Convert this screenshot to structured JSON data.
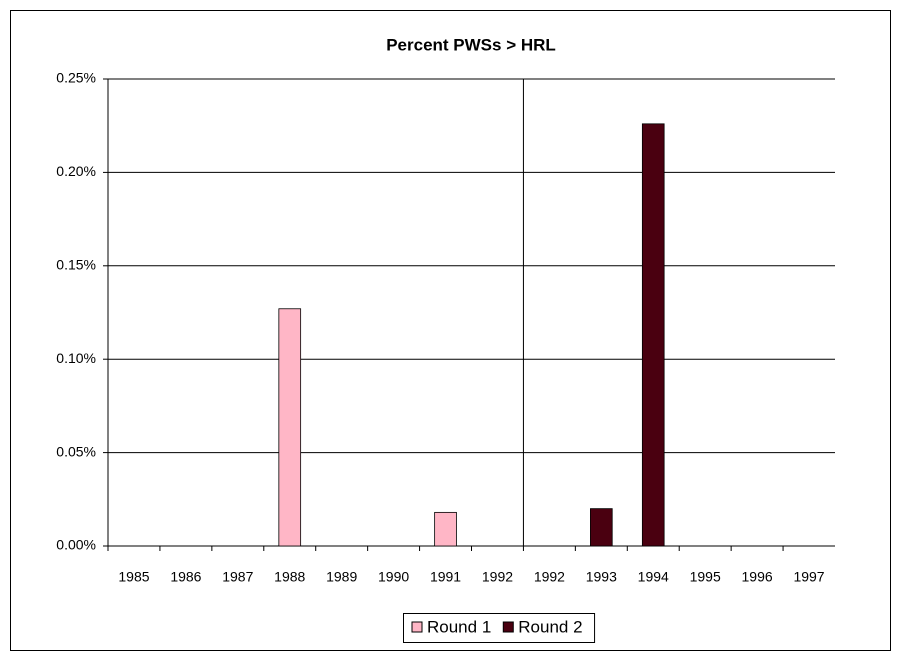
{
  "chart_data": {
    "type": "bar",
    "title": "Percent PWSs > HRL",
    "categories": [
      "1985",
      "1986",
      "1987",
      "1988",
      "1989",
      "1990",
      "1991",
      "1992",
      "1992",
      "1993",
      "1994",
      "1995",
      "1996",
      "1997"
    ],
    "series": [
      {
        "name": "Round 1",
        "color": "#ffb6c6",
        "values": [
          null,
          null,
          null,
          0.127,
          null,
          null,
          0.018,
          null,
          null,
          null,
          null,
          null,
          null,
          null
        ]
      },
      {
        "name": "Round 2",
        "color": "#4a0010",
        "values": [
          null,
          null,
          null,
          null,
          null,
          null,
          null,
          null,
          null,
          0.02,
          0.226,
          null,
          null,
          null
        ]
      }
    ],
    "ylim": [
      0,
      0.25
    ],
    "yticks": [
      {
        "value": 0,
        "label": "0.00%"
      },
      {
        "value": 0.05,
        "label": "0.05%"
      },
      {
        "value": 0.1,
        "label": "0.10%"
      },
      {
        "value": 0.15,
        "label": "0.15%"
      },
      {
        "value": 0.2,
        "label": "0.20%"
      },
      {
        "value": 0.25,
        "label": "0.25%"
      }
    ],
    "grid": true,
    "legend": "bottom"
  }
}
